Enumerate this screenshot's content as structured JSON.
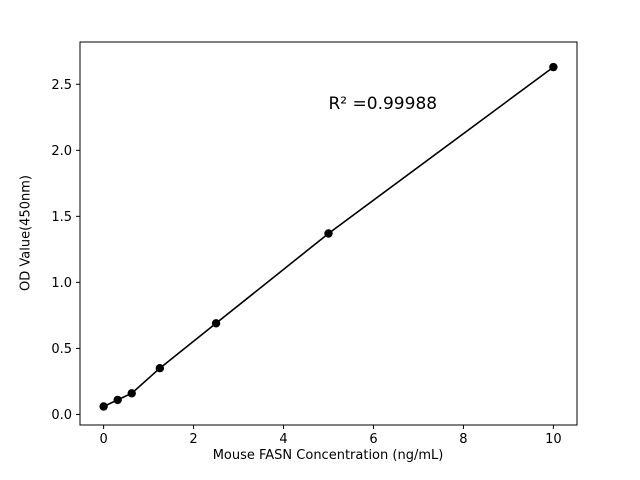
{
  "chart_data": {
    "type": "scatter",
    "title": "",
    "xlabel": "Mouse FASN Concentration (ng/mL)",
    "ylabel": "OD Value(450nm)",
    "x": [
      0,
      0.3125,
      0.625,
      1.25,
      2.5,
      5,
      10
    ],
    "y": [
      0.06,
      0.11,
      0.16,
      0.35,
      0.69,
      1.37,
      2.63
    ],
    "line_through_points": true,
    "annotation": {
      "text": "R² =0.99988",
      "x": 5.0,
      "y": 2.35
    },
    "xticks": [
      0,
      2,
      4,
      6,
      8,
      10
    ],
    "xtick_labels": [
      "0",
      "2",
      "4",
      "6",
      "8",
      "10"
    ],
    "yticks": [
      0.0,
      0.5,
      1.0,
      1.5,
      2.0,
      2.5
    ],
    "ytick_labels": [
      "0.0",
      "0.5",
      "1.0",
      "1.5",
      "2.0",
      "2.5"
    ],
    "xlim": [
      -0.525,
      10.525
    ],
    "ylim": [
      -0.08,
      2.82
    ],
    "grid": false,
    "legend": "none",
    "marker_color": "#000000",
    "line_color": "#000000",
    "background_color": "#ffffff",
    "axes_color": "#000000"
  }
}
